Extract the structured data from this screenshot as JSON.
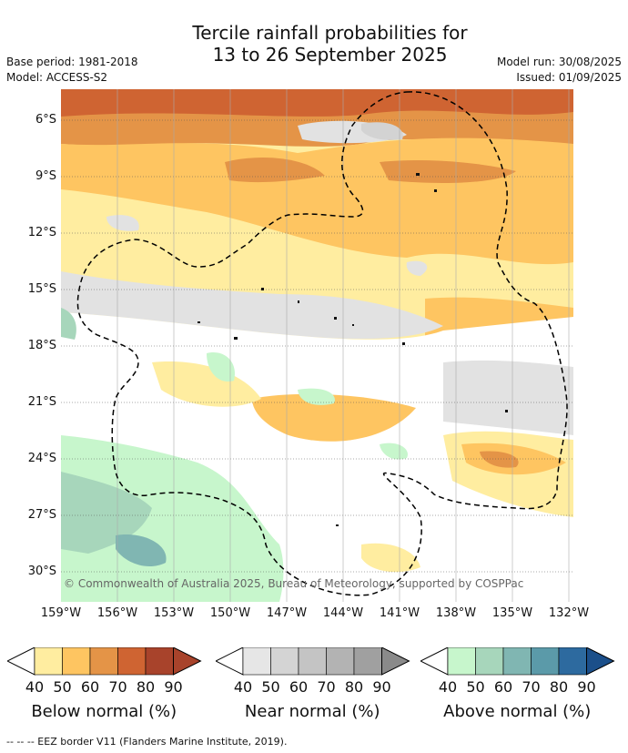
{
  "title_line1": "Tercile rainfall probabilities for",
  "title_line2": "13 to 26 September 2025",
  "base_period": "Base period: 1981-2018",
  "model": "Model: ACCESS-S2",
  "model_run": "Model run: 30/08/2025",
  "issued": "Issued: 01/09/2025",
  "y_ticks": [
    "6°S",
    "9°S",
    "12°S",
    "15°S",
    "18°S",
    "21°S",
    "24°S",
    "27°S",
    "30°S"
  ],
  "x_ticks": [
    "159°W",
    "156°W",
    "153°W",
    "150°W",
    "147°W",
    "144°W",
    "141°W",
    "138°W",
    "135°W",
    "132°W"
  ],
  "copyright": "© Commonwealth of Australia 2025, Bureau of Meteorology, supported by COSPPac",
  "colorbars": [
    {
      "label": "Below normal (%)",
      "ticks": [
        "40",
        "50",
        "60",
        "70",
        "80",
        "90"
      ],
      "colors": [
        "#ffeda0",
        "#fec561",
        "#e49447",
        "#cf6432",
        "#a8432b",
        "#a8432b"
      ]
    },
    {
      "label": "Near normal (%)",
      "ticks": [
        "40",
        "50",
        "60",
        "70",
        "80",
        "90"
      ],
      "colors": [
        "#e6e6e6",
        "#d4d4d4",
        "#c4c4c4",
        "#b3b3b3",
        "#a0a0a0",
        "#8a8a8a"
      ]
    },
    {
      "label": "Above normal (%)",
      "ticks": [
        "40",
        "50",
        "60",
        "70",
        "80",
        "90"
      ],
      "colors": [
        "#c7f6cc",
        "#a7d6bb",
        "#80b6b2",
        "#5b9aa9",
        "#2d6a9f",
        "#1b4f8a"
      ]
    }
  ],
  "footer": "--  --  -- EEZ border V11 (Flanders Marine Institute, 2019).",
  "colors": {
    "below_40": "#ffeda0",
    "below_50": "#fec561",
    "below_60": "#e49447",
    "below_70": "#cf6432",
    "near_40": "#e2e2e2",
    "near_50": "#d3d3d3",
    "above_40": "#c7f6cc",
    "above_50": "#a7d6bb",
    "above_60": "#80b6b2"
  }
}
